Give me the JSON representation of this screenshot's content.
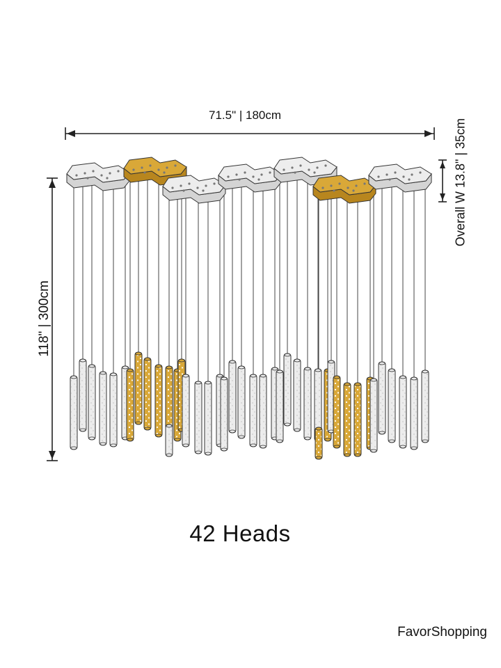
{
  "dimensions": {
    "width": "71.5\" | 180cm",
    "height": "118\" | 300cm",
    "depth": "Overall W 13.8\" | 35cm"
  },
  "heads": "42 Heads",
  "brand": "FavorShopping",
  "colors": {
    "line": "#222222",
    "canopy_silver": "#ededed",
    "canopy_gold": "#d9a838",
    "tube_clear": "#ececec",
    "tube_gold": "#d9a838"
  }
}
